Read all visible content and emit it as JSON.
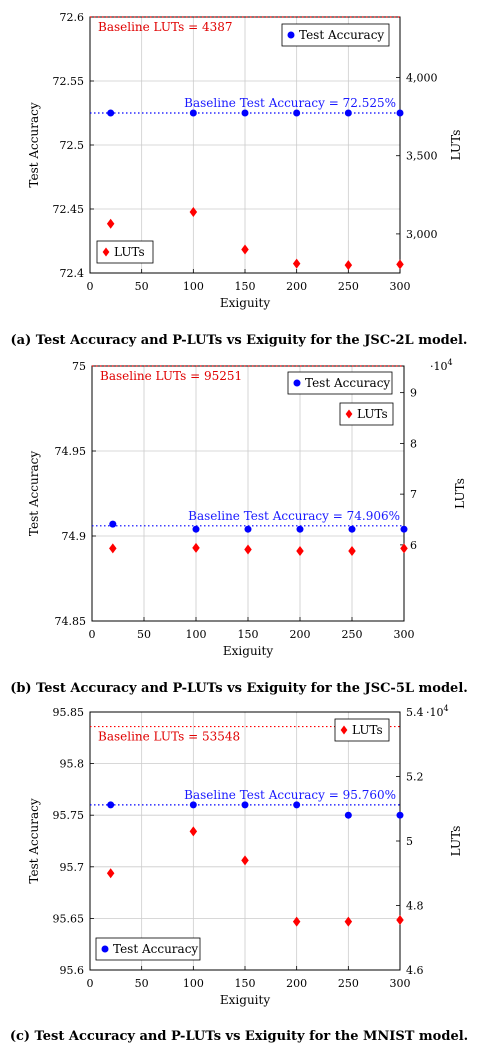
{
  "colors": {
    "accuracy": "#0000ff",
    "luts": "#ff0000",
    "grid": "#cccccc"
  },
  "chart_data": [
    {
      "type": "scatter",
      "caption": "(a) Test Accuracy and P-LUTs vs Exiguity for the JSC-2L model.",
      "xlabel": "Exiguity",
      "ylabel_left": "Test Accuracy",
      "ylabel_right": "LUTs",
      "xlim": [
        0,
        300
      ],
      "ylim_left": [
        72.4,
        72.6
      ],
      "ylim_right": [
        2750,
        4387
      ],
      "xticks": [
        "0",
        "50",
        "100",
        "150",
        "200",
        "250",
        "300"
      ],
      "yticks_left": [
        "72.4",
        "72.45",
        "72.5",
        "72.55",
        "72.6"
      ],
      "yticks_right": [
        "3,000",
        "3,500",
        "4,000"
      ],
      "right_exponent": "",
      "x": [
        20,
        100,
        150,
        200,
        250,
        300
      ],
      "accuracy": [
        72.525,
        72.525,
        72.525,
        72.525,
        72.525,
        72.525
      ],
      "luts": [
        3065,
        3140,
        2900,
        2810,
        2800,
        2805
      ],
      "baseline_accuracy": 72.525,
      "baseline_luts": 4387,
      "baseline_accuracy_label": "Baseline Test Accuracy = 72.525%",
      "baseline_luts_label": "Baseline LUTs = 4387",
      "legend_accuracy": "Test Accuracy",
      "legend_luts": "LUTs",
      "legend_accuracy_pos": "top-right",
      "legend_luts_pos": "bottom-left",
      "grid": true
    },
    {
      "type": "scatter",
      "caption": "(b) Test Accuracy and P-LUTs vs Exiguity for the JSC-5L model.",
      "xlabel": "Exiguity",
      "ylabel_left": "Test Accuracy",
      "ylabel_right": "LUTs",
      "xlim": [
        0,
        300
      ],
      "ylim_left": [
        74.85,
        75
      ],
      "ylim_right": [
        45000,
        95251
      ],
      "xticks": [
        "0",
        "50",
        "100",
        "150",
        "200",
        "250",
        "300"
      ],
      "yticks_left": [
        "74.85",
        "74.9",
        "74.95",
        "75"
      ],
      "yticks_right": [
        "6",
        "7",
        "8",
        "9"
      ],
      "right_exponent": "·10",
      "right_exponent_power": "4",
      "x": [
        20,
        100,
        150,
        200,
        250,
        300
      ],
      "accuracy": [
        74.907,
        74.904,
        74.904,
        74.904,
        74.904,
        74.904
      ],
      "luts": [
        59300,
        59400,
        59100,
        58800,
        58800,
        59300
      ],
      "baseline_accuracy": 74.906,
      "baseline_luts": 95251,
      "baseline_accuracy_label": "Baseline Test Accuracy = 74.906%",
      "baseline_luts_label": "Baseline LUTs = 95251",
      "legend_accuracy": "Test Accuracy",
      "legend_luts": "LUTs",
      "legend_accuracy_pos": "top-right",
      "legend_luts_pos": "top-right",
      "grid": true
    },
    {
      "type": "scatter",
      "caption": "(c) Test Accuracy and P-LUTs vs Exiguity for the MNIST model.",
      "xlabel": "Exiguity",
      "ylabel_left": "Test Accuracy",
      "ylabel_right": "LUTs",
      "xlim": [
        0,
        300
      ],
      "ylim_left": [
        95.6,
        95.85
      ],
      "ylim_right": [
        46000,
        54000
      ],
      "xticks": [
        "0",
        "50",
        "100",
        "150",
        "200",
        "250",
        "300"
      ],
      "yticks_left": [
        "95.6",
        "95.65",
        "95.7",
        "95.75",
        "95.8",
        "95.85"
      ],
      "yticks_right": [
        "4.6",
        "4.8",
        "5",
        "5.2",
        "5.4"
      ],
      "right_exponent": "·10",
      "right_exponent_power": "4",
      "x": [
        20,
        100,
        150,
        200,
        250,
        300
      ],
      "accuracy": [
        95.76,
        95.76,
        95.76,
        95.76,
        95.75,
        95.75
      ],
      "luts": [
        49000,
        50300,
        49400,
        47500,
        47500,
        47550
      ],
      "baseline_accuracy": 95.76,
      "baseline_luts": 53548,
      "baseline_accuracy_label": "Baseline Test Accuracy = 95.760%",
      "baseline_luts_label": "Baseline LUTs = 53548",
      "legend_accuracy": "Test Accuracy",
      "legend_luts": "LUTs",
      "legend_accuracy_pos": "bottom-left",
      "legend_luts_pos": "top-right",
      "grid": true
    }
  ]
}
